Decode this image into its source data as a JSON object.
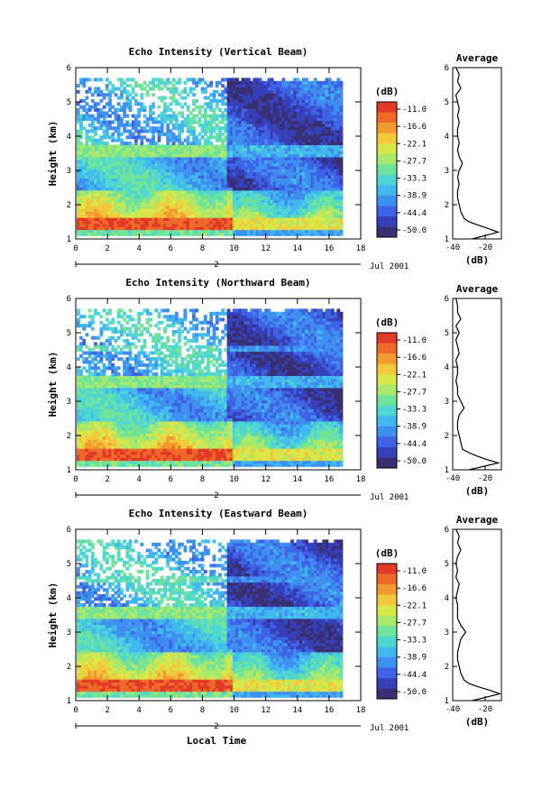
{
  "figure": {
    "xlabel": "Local Time",
    "date_label": "Jul 2001",
    "day_label": "2",
    "avg_title": "Average",
    "cbar_unit": "(dB)",
    "avg_xlabel": "(dB)"
  },
  "colors": {
    "scale": [
      "#3a2f72",
      "#3640b8",
      "#3f63e6",
      "#3f8fef",
      "#41b8ef",
      "#4fd6d0",
      "#6fe39a",
      "#a8e86c",
      "#d9e64a",
      "#f2c83a",
      "#f29a30",
      "#ee6a2a",
      "#e23a26"
    ]
  },
  "chart_data": [
    {
      "type": "heatmap",
      "title": "Echo Intensity (Vertical Beam)",
      "ylabel": "Height (km)",
      "xlim": [
        0,
        18
      ],
      "ylim": [
        1,
        6
      ],
      "xticks": [
        "0",
        "2",
        "4",
        "6",
        "8",
        "10",
        "12",
        "14",
        "16",
        "18"
      ],
      "yticks": [
        "1",
        "2",
        "3",
        "4",
        "5",
        "6"
      ],
      "colorbar": {
        "unit": "(dB)",
        "ticks": [
          "-11.0",
          "-16.6",
          "-22.1",
          "-27.7",
          "-33.3",
          "-38.9",
          "-44.4",
          "-50.0"
        ]
      },
      "average_profile": {
        "title": "Average",
        "xlabel": "(dB)",
        "xticks": [
          "-40",
          "-20"
        ],
        "xlim": [
          -40,
          -10
        ],
        "height_km": [
          1.0,
          1.2,
          1.3,
          1.4,
          1.5,
          1.6,
          1.8,
          2.0,
          2.2,
          2.4,
          2.6,
          2.8,
          3.0,
          3.2,
          3.4,
          3.6,
          3.8,
          4.0,
          4.2,
          4.4,
          4.6,
          4.8,
          5.0,
          5.2,
          5.4,
          5.6,
          5.8,
          6.0
        ],
        "db": [
          -28,
          -12,
          -18,
          -24,
          -30,
          -33,
          -35,
          -36,
          -37,
          -37,
          -36,
          -37,
          -36,
          -34,
          -36,
          -37,
          -36,
          -37,
          -37,
          -36,
          -37,
          -36,
          -37,
          -38,
          -35,
          -37,
          -36,
          -38
        ]
      }
    },
    {
      "type": "heatmap",
      "title": "Echo Intensity (Northward Beam)",
      "ylabel": "Height (km)",
      "xlim": [
        0,
        18
      ],
      "ylim": [
        1,
        6
      ],
      "xticks": [
        "0",
        "2",
        "4",
        "6",
        "8",
        "10",
        "12",
        "14",
        "16",
        "18"
      ],
      "yticks": [
        "1",
        "2",
        "3",
        "4",
        "5",
        "6"
      ],
      "colorbar": {
        "unit": "(dB)",
        "ticks": [
          "-11.0",
          "-16.6",
          "-22.1",
          "-27.7",
          "-33.3",
          "-38.9",
          "-44.4",
          "-50.0"
        ]
      },
      "average_profile": {
        "title": "Average",
        "xlabel": "(dB)",
        "xticks": [
          "-40",
          "-20"
        ],
        "xlim": [
          -40,
          -10
        ],
        "height_km": [
          1.0,
          1.2,
          1.3,
          1.4,
          1.5,
          1.6,
          1.8,
          2.0,
          2.2,
          2.4,
          2.6,
          2.8,
          3.0,
          3.2,
          3.4,
          3.6,
          3.8,
          4.0,
          4.2,
          4.4,
          4.6,
          4.8,
          5.0,
          5.2,
          5.4,
          5.6,
          5.8,
          6.0
        ],
        "db": [
          -30,
          -12,
          -19,
          -25,
          -30,
          -34,
          -35,
          -36,
          -37,
          -37,
          -36,
          -33,
          -35,
          -37,
          -37,
          -38,
          -37,
          -37,
          -38,
          -36,
          -37,
          -38,
          -36,
          -38,
          -35,
          -37,
          -37,
          -38
        ]
      }
    },
    {
      "type": "heatmap",
      "title": "Echo Intensity (Eastward Beam)",
      "ylabel": "Height (km)",
      "xlim": [
        0,
        18
      ],
      "ylim": [
        1,
        6
      ],
      "xticks": [
        "0",
        "2",
        "4",
        "6",
        "8",
        "10",
        "12",
        "14",
        "16",
        "18"
      ],
      "yticks": [
        "1",
        "2",
        "3",
        "4",
        "5",
        "6"
      ],
      "colorbar": {
        "unit": "(dB)",
        "ticks": [
          "-11.0",
          "-16.6",
          "-22.1",
          "-27.7",
          "-33.3",
          "-38.9",
          "-44.4",
          "-50.0"
        ]
      },
      "average_profile": {
        "title": "Average",
        "xlabel": "(dB)",
        "xticks": [
          "-40",
          "-20"
        ],
        "xlim": [
          -40,
          -10
        ],
        "height_km": [
          1.0,
          1.2,
          1.3,
          1.4,
          1.5,
          1.6,
          1.8,
          2.0,
          2.2,
          2.4,
          2.6,
          2.8,
          3.0,
          3.2,
          3.4,
          3.6,
          3.8,
          4.0,
          4.2,
          4.4,
          4.6,
          4.8,
          5.0,
          5.2,
          5.4,
          5.6,
          5.8,
          6.0
        ],
        "db": [
          -28,
          -11,
          -17,
          -24,
          -30,
          -33,
          -35,
          -36,
          -37,
          -37,
          -36,
          -35,
          -32,
          -35,
          -37,
          -37,
          -37,
          -38,
          -37,
          -36,
          -38,
          -37,
          -38,
          -37,
          -35,
          -37,
          -36,
          -38
        ]
      }
    }
  ]
}
